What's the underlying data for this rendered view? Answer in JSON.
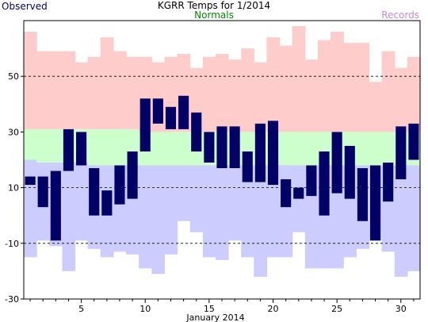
{
  "chart_data": {
    "type": "bar",
    "title": "KGRR Temps for 1/2014",
    "xlabel": "January 2014",
    "ylabel": "",
    "ylim": [
      -30,
      70
    ],
    "yticks": [
      -30,
      -10,
      10,
      30,
      50
    ],
    "xticks": [
      5,
      10,
      15,
      20,
      25,
      30
    ],
    "days": [
      1,
      2,
      3,
      4,
      5,
      6,
      7,
      8,
      9,
      10,
      11,
      12,
      13,
      14,
      15,
      16,
      17,
      18,
      19,
      20,
      21,
      22,
      23,
      24,
      25,
      26,
      27,
      28,
      29,
      30,
      31
    ],
    "gridlines_dashed": [
      -10,
      10,
      50
    ],
    "legend": {
      "observed": {
        "label": "Observed",
        "color": "#000066"
      },
      "normals": {
        "label": "Normals",
        "color": "#008800"
      },
      "records": {
        "label": "Records",
        "color": "#cc88cc"
      }
    },
    "colors": {
      "record_high_band": "#ffcccc",
      "normal_band": "#ccffcc",
      "record_low_band": "#ccccff",
      "observed_bar": "#000066"
    },
    "series": [
      {
        "name": "Observed",
        "high": [
          14,
          14,
          16,
          31,
          30,
          17,
          9,
          18,
          23,
          42,
          42,
          39,
          43,
          37,
          30,
          32,
          32,
          23,
          33,
          34,
          13,
          10,
          18,
          23,
          30,
          25,
          17,
          18,
          19,
          32,
          33
        ],
        "low": [
          11,
          3,
          -9,
          16,
          18,
          0,
          0,
          4,
          6,
          23,
          33,
          31,
          31,
          23,
          19,
          17,
          17,
          12,
          12,
          11,
          3,
          6,
          7,
          0,
          8,
          6,
          -2,
          -9,
          5,
          13,
          20
        ]
      },
      {
        "name": "Normals",
        "high": [
          31,
          31,
          31,
          31,
          31,
          31,
          31,
          31,
          31,
          30,
          30,
          30,
          30,
          30,
          30,
          30,
          30,
          30,
          30,
          30,
          30,
          30,
          30,
          30,
          30,
          30,
          30,
          30,
          30,
          30,
          30
        ],
        "low": [
          20,
          19,
          19,
          19,
          19,
          18,
          18,
          18,
          18,
          18,
          18,
          18,
          18,
          18,
          18,
          18,
          18,
          18,
          18,
          18,
          18,
          18,
          18,
          18,
          18,
          18,
          18,
          18,
          18,
          18,
          18
        ]
      },
      {
        "name": "Records",
        "high": [
          66,
          59,
          59,
          59,
          55,
          57,
          64,
          59,
          57,
          57,
          55,
          57,
          58,
          53,
          57,
          58,
          56,
          60,
          55,
          64,
          61,
          68,
          56,
          63,
          66,
          62,
          62,
          48,
          59,
          53,
          57
        ],
        "low": [
          -15,
          -9,
          -11,
          -20,
          -9,
          -12,
          -15,
          -13,
          -14,
          -19,
          -21,
          -14,
          -2,
          -6,
          -15,
          -16,
          -9,
          -15,
          -22,
          -15,
          -15,
          -6,
          -19,
          -19,
          -19,
          -15,
          -12,
          -9,
          -13,
          -22,
          -20
        ]
      }
    ]
  }
}
